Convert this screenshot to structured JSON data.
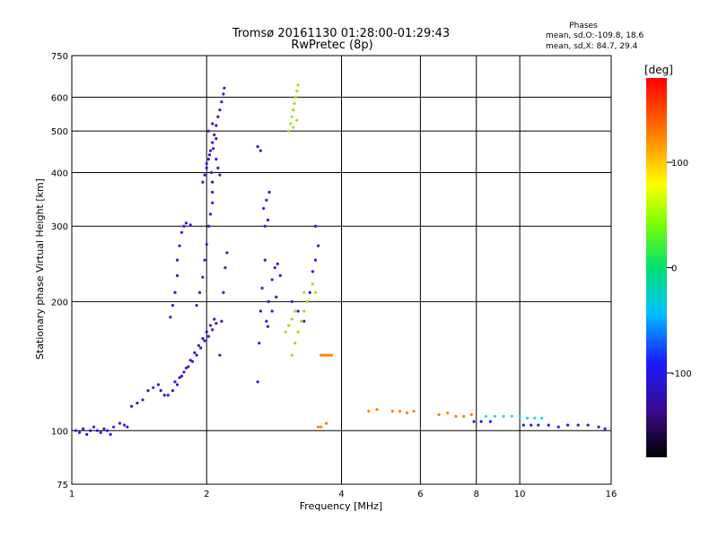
{
  "chart_data": {
    "type": "scatter",
    "title": "Tromsø 20161130 01:28:00-01:29:43",
    "subtitle": "RwPretec (8p)",
    "xlabel": "Frequency [MHz]",
    "ylabel": "Stationary phase Virtual Height [km]",
    "x_scale": "log",
    "y_scale": "log",
    "xlim": [
      1,
      16
    ],
    "ylim": [
      75,
      750
    ],
    "x_ticks": [
      1,
      2,
      4,
      6,
      8,
      10,
      16
    ],
    "y_ticks": [
      75,
      100,
      200,
      300,
      400,
      500,
      600,
      750
    ],
    "grid": true,
    "phase_box": {
      "title": "Phases",
      "line_o": "mean, sd,O:-109.8, 18.6",
      "line_x": "mean, sd,X: 84.7, 29.4"
    },
    "colorbar": {
      "label": "[deg]",
      "range": [
        -180,
        180
      ],
      "ticks": [
        100,
        0,
        -100
      ]
    },
    "series": [
      {
        "color": "#2a1fd4",
        "phase": -110,
        "points": [
          [
            1.02,
            100
          ],
          [
            1.04,
            99
          ],
          [
            1.06,
            101
          ],
          [
            1.08,
            98
          ],
          [
            1.1,
            100
          ],
          [
            1.12,
            102
          ],
          [
            1.14,
            100
          ],
          [
            1.16,
            99
          ],
          [
            1.18,
            101
          ],
          [
            1.2,
            100
          ],
          [
            1.22,
            98
          ],
          [
            1.24,
            102
          ],
          [
            1.28,
            104
          ],
          [
            1.31,
            103
          ],
          [
            1.33,
            102
          ],
          [
            1.36,
            114
          ],
          [
            1.4,
            116
          ],
          [
            1.44,
            118
          ],
          [
            1.48,
            124
          ],
          [
            1.52,
            126
          ],
          [
            1.56,
            128
          ],
          [
            1.58,
            124
          ],
          [
            1.61,
            121
          ],
          [
            1.64,
            121
          ],
          [
            1.68,
            124
          ],
          [
            1.72,
            128
          ],
          [
            1.76,
            134
          ],
          [
            1.8,
            140
          ],
          [
            1.84,
            146
          ],
          [
            1.88,
            152
          ],
          [
            1.92,
            158
          ],
          [
            1.96,
            164
          ],
          [
            2.0,
            170
          ],
          [
            2.04,
            176
          ],
          [
            2.08,
            182
          ],
          [
            1.7,
            130
          ],
          [
            1.74,
            133
          ],
          [
            1.78,
            137
          ],
          [
            1.82,
            141
          ],
          [
            1.86,
            145
          ],
          [
            1.9,
            150
          ],
          [
            1.94,
            156
          ],
          [
            1.98,
            162
          ],
          [
            2.02,
            166
          ],
          [
            2.06,
            172
          ],
          [
            2.1,
            178
          ],
          [
            1.66,
            184
          ],
          [
            1.68,
            196
          ],
          [
            1.7,
            210
          ],
          [
            1.72,
            230
          ],
          [
            1.72,
            250
          ],
          [
            1.74,
            270
          ],
          [
            1.76,
            290
          ],
          [
            1.78,
            300
          ],
          [
            1.8,
            305
          ],
          [
            1.84,
            302
          ],
          [
            1.9,
            196
          ],
          [
            1.93,
            210
          ],
          [
            1.96,
            228
          ],
          [
            1.98,
            250
          ],
          [
            2.0,
            272
          ],
          [
            2.02,
            300
          ],
          [
            2.04,
            320
          ],
          [
            2.06,
            340
          ],
          [
            2.06,
            360
          ],
          [
            2.06,
            380
          ],
          [
            2.05,
            400
          ],
          [
            1.96,
            380
          ],
          [
            1.98,
            395
          ],
          [
            2.0,
            410
          ],
          [
            2.02,
            430
          ],
          [
            2.04,
            450
          ],
          [
            2.06,
            470
          ],
          [
            2.08,
            490
          ],
          [
            2.1,
            515
          ],
          [
            2.12,
            540
          ],
          [
            2.14,
            560
          ],
          [
            2.16,
            585
          ],
          [
            2.18,
            610
          ],
          [
            2.19,
            630
          ],
          [
            2.0,
            420
          ],
          [
            2.03,
            440
          ],
          [
            2.07,
            455
          ],
          [
            2.1,
            430
          ],
          [
            2.12,
            410
          ],
          [
            2.14,
            395
          ],
          [
            2.02,
            500
          ],
          [
            2.06,
            520
          ],
          [
            2.1,
            480
          ],
          [
            2.14,
            150
          ],
          [
            2.16,
            180
          ],
          [
            2.18,
            210
          ],
          [
            2.2,
            240
          ],
          [
            2.22,
            260
          ],
          [
            2.6,
            130
          ],
          [
            2.62,
            160
          ],
          [
            2.64,
            190
          ],
          [
            2.66,
            215
          ],
          [
            2.7,
            250
          ],
          [
            2.72,
            180
          ],
          [
            2.75,
            200
          ],
          [
            2.8,
            225
          ],
          [
            2.84,
            240
          ],
          [
            2.88,
            245
          ],
          [
            2.92,
            230
          ],
          [
            2.86,
            205
          ],
          [
            2.8,
            190
          ],
          [
            2.74,
            175
          ],
          [
            2.68,
            330
          ],
          [
            2.72,
            345
          ],
          [
            2.76,
            360
          ],
          [
            2.7,
            300
          ],
          [
            2.74,
            310
          ],
          [
            2.6,
            460
          ],
          [
            2.64,
            450
          ],
          [
            3.1,
            200
          ],
          [
            3.2,
            190
          ],
          [
            3.3,
            180
          ],
          [
            3.4,
            210
          ],
          [
            3.45,
            235
          ],
          [
            3.5,
            250
          ],
          [
            3.55,
            270
          ],
          [
            3.5,
            300
          ],
          [
            7.9,
            105
          ],
          [
            8.2,
            105
          ],
          [
            8.6,
            105
          ],
          [
            10.2,
            103
          ],
          [
            10.6,
            103
          ],
          [
            11.0,
            103
          ],
          [
            11.6,
            103
          ],
          [
            12.2,
            102
          ],
          [
            12.8,
            103
          ],
          [
            13.5,
            103
          ],
          [
            14.2,
            103
          ],
          [
            15.0,
            102
          ],
          [
            15.5,
            101
          ]
        ]
      },
      {
        "color": "#9be01e",
        "phase": 60,
        "points": [
          [
            3.05,
            500
          ],
          [
            3.08,
            520
          ],
          [
            3.1,
            540
          ],
          [
            3.12,
            560
          ],
          [
            3.14,
            580
          ],
          [
            3.16,
            600
          ],
          [
            3.18,
            620
          ],
          [
            3.2,
            640
          ],
          [
            3.12,
            510
          ],
          [
            3.18,
            530
          ],
          [
            3.1,
            150
          ],
          [
            3.15,
            160
          ],
          [
            3.2,
            170
          ],
          [
            3.25,
            180
          ],
          [
            3.3,
            190
          ],
          [
            3.35,
            200
          ],
          [
            3.3,
            210
          ],
          [
            3.45,
            220
          ],
          [
            3.5,
            210
          ],
          [
            3.0,
            170
          ],
          [
            3.05,
            176
          ],
          [
            3.1,
            182
          ],
          [
            3.15,
            190
          ]
        ]
      },
      {
        "color": "#ff7f00",
        "phase": 140,
        "points": [
          [
            3.6,
            150
          ],
          [
            3.65,
            150
          ],
          [
            3.7,
            150
          ],
          [
            3.75,
            150
          ],
          [
            3.8,
            150
          ],
          [
            3.55,
            102
          ],
          [
            3.6,
            102
          ],
          [
            3.7,
            104
          ],
          [
            4.6,
            111
          ],
          [
            4.8,
            112
          ],
          [
            5.2,
            111
          ],
          [
            5.4,
            111
          ],
          [
            5.6,
            110
          ],
          [
            5.8,
            111
          ],
          [
            6.6,
            109
          ],
          [
            6.9,
            110
          ],
          [
            7.2,
            108
          ],
          [
            7.5,
            108
          ],
          [
            7.8,
            109
          ]
        ]
      },
      {
        "color": "#2bd4e8",
        "phase": -30,
        "points": [
          [
            8.4,
            108
          ],
          [
            8.8,
            108
          ],
          [
            9.2,
            108
          ],
          [
            9.6,
            108
          ],
          [
            10.0,
            108
          ],
          [
            10.4,
            107
          ],
          [
            10.8,
            107
          ],
          [
            11.2,
            107
          ]
        ]
      }
    ]
  }
}
